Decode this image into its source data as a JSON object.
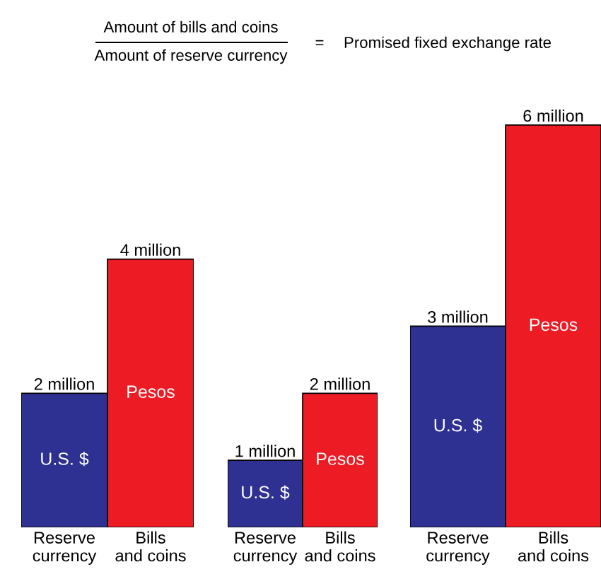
{
  "chart_data": [
    {
      "type": "bar",
      "categories": [
        "Reserve\ncurrency",
        "Bills\nand coins"
      ],
      "annotations": [
        "Amount of bills and coins",
        "Amount of reserve currency",
        "=",
        "Promised fixed exchange rate"
      ],
      "legend": false,
      "series": [
        {
          "name": "U.S. $",
          "color": "#2e3192",
          "values": [
            2,
            null
          ],
          "value_labels": [
            "2 million",
            null
          ]
        },
        {
          "name": "Pesos",
          "color": "#ed1c24",
          "values": [
            null,
            4
          ],
          "value_labels": [
            null,
            "4 million"
          ]
        }
      ]
    },
    {
      "type": "bar",
      "categories": [
        "Reserve\ncurrency",
        "Bills\nand coins"
      ],
      "legend": false,
      "series": [
        {
          "name": "U.S. $",
          "color": "#2e3192",
          "values": [
            1,
            null
          ],
          "value_labels": [
            "1 million",
            null
          ]
        },
        {
          "name": "Pesos",
          "color": "#ed1c24",
          "values": [
            null,
            2
          ],
          "value_labels": [
            null,
            "2 million"
          ]
        }
      ]
    },
    {
      "type": "bar",
      "categories": [
        "Reserve\ncurrency",
        "Bills\nand coins"
      ],
      "legend": false,
      "series": [
        {
          "name": "U.S. $",
          "color": "#2e3192",
          "values": [
            3,
            null
          ],
          "value_labels": [
            "3 million",
            null
          ]
        },
        {
          "name": "Pesos",
          "color": "#ed1c24",
          "values": [
            null,
            6
          ],
          "value_labels": [
            null,
            "6 million"
          ]
        }
      ]
    }
  ]
}
